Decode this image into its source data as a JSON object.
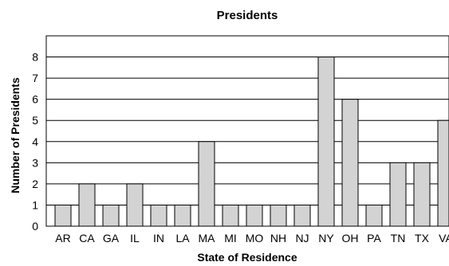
{
  "chart_data": {
    "type": "bar",
    "title": "Presidents",
    "xlabel": "State of Residence",
    "ylabel": "Number of Presidents",
    "categories": [
      "AR",
      "CA",
      "GA",
      "IL",
      "IN",
      "LA",
      "MA",
      "MI",
      "MO",
      "NH",
      "NJ",
      "NY",
      "OH",
      "PA",
      "TN",
      "TX",
      "VA"
    ],
    "values": [
      1,
      2,
      1,
      2,
      1,
      1,
      4,
      1,
      1,
      1,
      1,
      8,
      6,
      1,
      3,
      3,
      5
    ],
    "ylim": [
      0,
      9
    ],
    "yticks": [
      0,
      1,
      2,
      3,
      4,
      5,
      6,
      7,
      8
    ],
    "grid": true,
    "bar_color": "#d3d3d3"
  }
}
